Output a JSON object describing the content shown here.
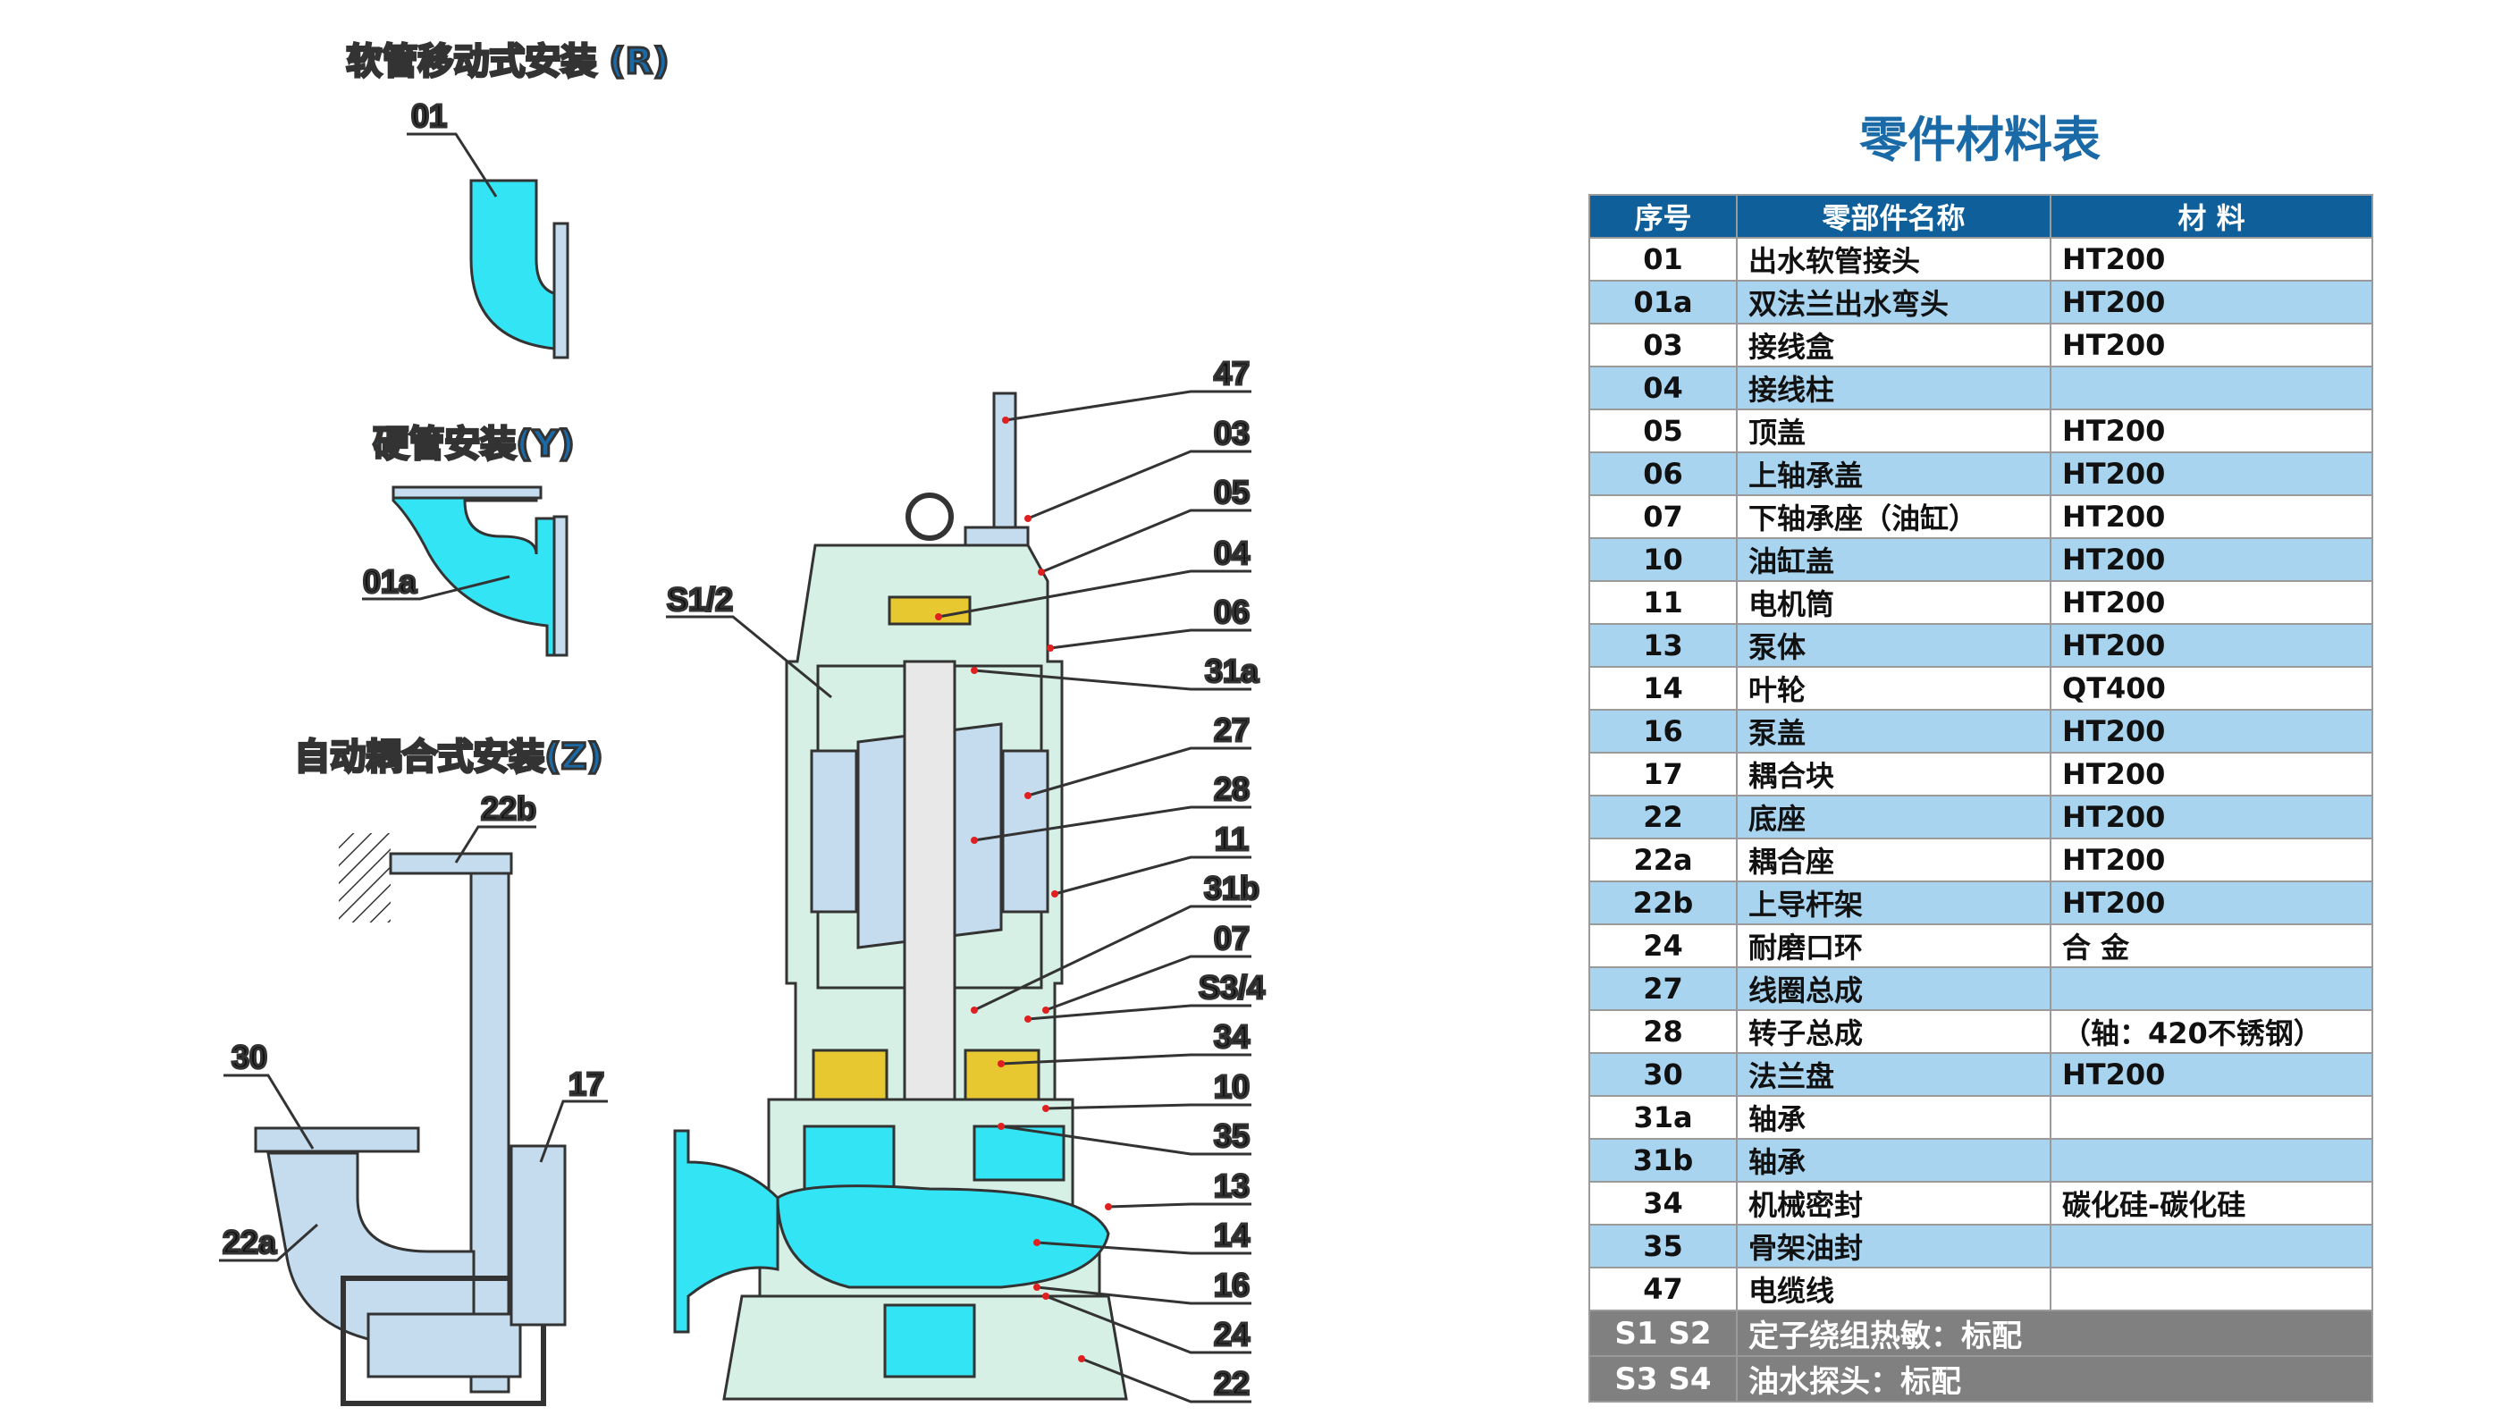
{
  "diagram": {
    "install_titles": [
      "软管移动式安装 (R)",
      "硬管安装(Y)",
      "自动耦合式安装(Z)"
    ],
    "left_labels": [
      "01",
      "01a",
      "22b",
      "30",
      "17",
      "22a"
    ],
    "sensor_label": "S1/2",
    "right_labels": [
      "47",
      "03",
      "05",
      "04",
      "06",
      "31a",
      "27",
      "28",
      "11",
      "31b",
      "07",
      "S3/4",
      "34",
      "10",
      "35",
      "13",
      "14",
      "16",
      "24",
      "22"
    ],
    "colors": {
      "water": "#33e4f4",
      "casing": "#d6f0e6",
      "steel": "#c4dcee",
      "seal": "#e8c830",
      "title": "#1a6aa8"
    }
  },
  "table": {
    "title": "零件材料表",
    "headers": [
      "序号",
      "零部件名称",
      "材 料"
    ],
    "rows": [
      [
        "01",
        "出水软管接头",
        "HT200"
      ],
      [
        "01a",
        "双法兰出水弯头",
        "HT200"
      ],
      [
        "03",
        "接线盒",
        "HT200"
      ],
      [
        "04",
        "接线柱",
        ""
      ],
      [
        "05",
        "顶盖",
        "HT200"
      ],
      [
        "06",
        "上轴承盖",
        "HT200"
      ],
      [
        "07",
        "下轴承座（油缸）",
        "HT200"
      ],
      [
        "10",
        "油缸盖",
        "HT200"
      ],
      [
        "11",
        "电机筒",
        "HT200"
      ],
      [
        "13",
        "泵体",
        "HT200"
      ],
      [
        "14",
        "叶轮",
        "QT400"
      ],
      [
        "16",
        "泵盖",
        "HT200"
      ],
      [
        "17",
        "耦合块",
        "HT200"
      ],
      [
        "22",
        "底座",
        "HT200"
      ],
      [
        "22a",
        "耦合座",
        "HT200"
      ],
      [
        "22b",
        "上导杆架",
        "HT200"
      ],
      [
        "24",
        "耐磨口环",
        "合 金"
      ],
      [
        "27",
        "线圈总成",
        ""
      ],
      [
        "28",
        "转子总成",
        "（轴：420不锈钢）"
      ],
      [
        "30",
        "法兰盘",
        "HT200"
      ],
      [
        "31a",
        "轴承",
        ""
      ],
      [
        "31b",
        "轴承",
        ""
      ],
      [
        "34",
        "机械密封",
        "碳化硅-碳化硅"
      ],
      [
        "35",
        "骨架油封",
        ""
      ],
      [
        "47",
        "电缆线",
        ""
      ]
    ],
    "notes": [
      [
        "S1 S2",
        "定子绕组热敏：标配"
      ],
      [
        "S3 S4",
        "油水探头：标配"
      ]
    ],
    "colors": {
      "header": "#0e5f9a",
      "alt_row": "#a8d4f0",
      "note_row": "#808080"
    }
  }
}
